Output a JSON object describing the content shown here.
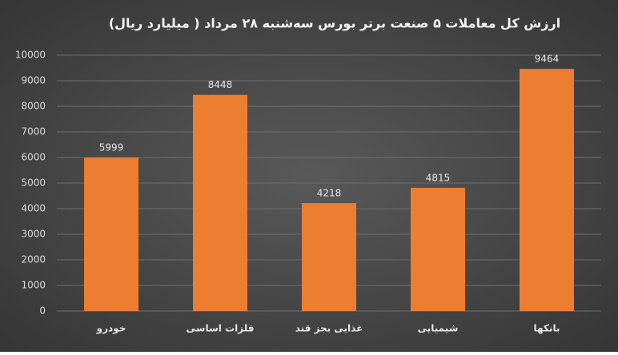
{
  "chart_data": {
    "type": "bar",
    "title": "ارزش کل معاملات ۵ صنعت برتر بورس سه‌شنبه ۲۸ مرداد ( میلیارد ریال)",
    "categories": [
      "خودرو",
      "فلزات اساسی",
      "غذایی بجز قند",
      "شیمیایی",
      "بانکها"
    ],
    "values": [
      5999,
      8448,
      4218,
      4815,
      9464
    ],
    "color": "#ed7d31",
    "ylim": [
      0,
      10000
    ],
    "yticks": [
      0,
      1000,
      2000,
      3000,
      4000,
      5000,
      6000,
      7000,
      8000,
      9000,
      10000
    ],
    "grid": true
  }
}
